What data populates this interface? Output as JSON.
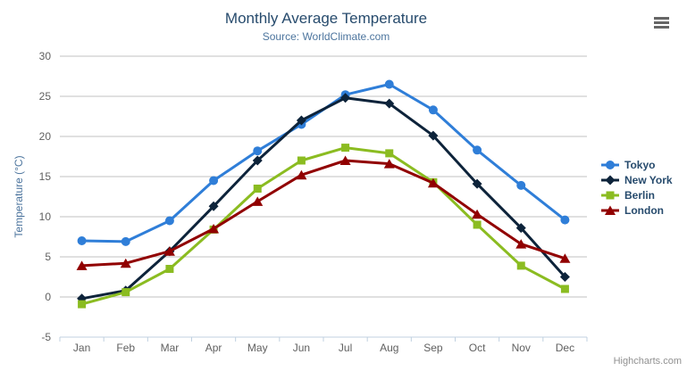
{
  "header": {
    "title": "Monthly Average Temperature",
    "subtitle": "Source: WorldClimate.com"
  },
  "credit": {
    "label": "Highcharts.com"
  },
  "colors": {
    "title": "#274b6d",
    "subtitle": "#4d759e",
    "grid": "#c0c0c0",
    "axis_line": "#c0d0e0",
    "axis_label": "#606060",
    "axis_title": "#4d759e",
    "legend_text": "#274b6d",
    "credit_text": "#909090"
  },
  "chart_data": {
    "type": "line",
    "title": "Monthly Average Temperature",
    "subtitle": "Source: WorldClimate.com",
    "categories": [
      "Jan",
      "Feb",
      "Mar",
      "Apr",
      "May",
      "Jun",
      "Jul",
      "Aug",
      "Sep",
      "Oct",
      "Nov",
      "Dec"
    ],
    "series": [
      {
        "name": "Tokyo",
        "color": "#2f7ed8",
        "marker": "circle",
        "values": [
          7.0,
          6.9,
          9.5,
          14.5,
          18.2,
          21.5,
          25.2,
          26.5,
          23.3,
          18.3,
          13.9,
          9.6
        ]
      },
      {
        "name": "New York",
        "color": "#0d233a",
        "marker": "diamond",
        "values": [
          -0.2,
          0.8,
          5.7,
          11.3,
          17.0,
          22.0,
          24.8,
          24.1,
          20.1,
          14.1,
          8.6,
          2.5
        ]
      },
      {
        "name": "Berlin",
        "color": "#8bbc21",
        "marker": "square",
        "values": [
          -0.9,
          0.6,
          3.5,
          8.4,
          13.5,
          17.0,
          18.6,
          17.9,
          14.3,
          9.0,
          3.9,
          1.0
        ]
      },
      {
        "name": "London",
        "color": "#910000",
        "marker": "triangle",
        "values": [
          3.9,
          4.2,
          5.7,
          8.5,
          11.9,
          15.2,
          17.0,
          16.6,
          14.2,
          10.3,
          6.6,
          4.8
        ]
      }
    ],
    "xlabel": "",
    "ylabel": "Temperature (°C)",
    "ylim": [
      -5,
      30
    ],
    "ytick_step": 5,
    "grid": true,
    "legend_position": "right"
  }
}
